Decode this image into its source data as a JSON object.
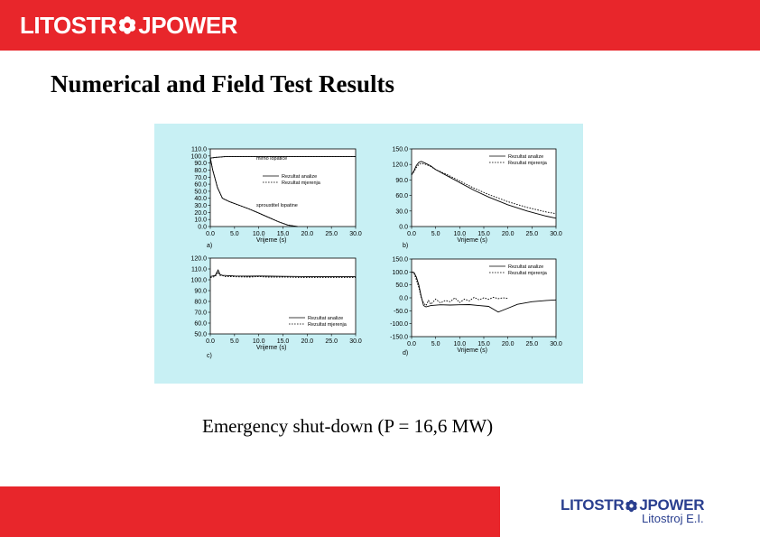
{
  "brand": {
    "name_part1": "LITOSTR",
    "name_part2": "JPOWER",
    "subsidiary": "Litostroj E.I.",
    "colors": {
      "red": "#e8262b",
      "blue": "#2a3f8f"
    },
    "logo_icon": "flower-icon"
  },
  "slide": {
    "title": "Numerical and Field Test Results",
    "caption": "Emergency shut-down (P = 16,6 MW)"
  },
  "chart_data": [
    {
      "id": "a",
      "type": "line",
      "panel_label": "a)",
      "xlabel": "Vrijeme (s)",
      "ylabel": "",
      "xlim": [
        0,
        30
      ],
      "ylim": [
        0,
        110
      ],
      "x_ticks": [
        "0.0",
        "5.0",
        "10.0",
        "15.0",
        "20.0",
        "25.0",
        "30.0"
      ],
      "y_ticks": [
        "110.0",
        "100.0",
        "90.0",
        "80.0",
        "70.0",
        "60.0",
        "50.0",
        "40.0",
        "30.0",
        "20.0",
        "10.0",
        "0.0"
      ],
      "legend": {
        "position": "right",
        "entries": [
          "Rezultat analize",
          "Rezultat mjerenja"
        ]
      },
      "annotations": [
        {
          "text": "mirno lopatice",
          "x": 9.5,
          "y": 97
        },
        {
          "text": "sproustitel lopatine",
          "x": 9.5,
          "y": 31
        }
      ],
      "series": [
        {
          "name": "Rezultat analize",
          "style": "solid",
          "x": [
            0,
            1,
            3,
            5,
            10,
            15,
            20,
            25,
            30
          ],
          "y": [
            97,
            98,
            99,
            99,
            99,
            99,
            99,
            99,
            99
          ]
        },
        {
          "name": "Rezultat mjerenja",
          "style": "dashed",
          "x": [
            0,
            1,
            3,
            5,
            10,
            15,
            20,
            25,
            30
          ],
          "y": [
            97,
            98,
            99,
            99,
            99,
            99,
            99,
            99,
            99
          ]
        },
        {
          "name": "Rezultat analize",
          "style": "solid",
          "x": [
            0,
            0.5,
            1.5,
            2.5,
            4,
            6,
            8,
            10,
            12,
            14,
            16,
            18
          ],
          "y": [
            97,
            80,
            55,
            40,
            35,
            30,
            25,
            19,
            13,
            7,
            2,
            0
          ]
        },
        {
          "name": "Rezultat mjerenja",
          "style": "dashed",
          "x": [
            0,
            0.5,
            1.5,
            2.5,
            4,
            6,
            8,
            10,
            12,
            14,
            16,
            18
          ],
          "y": [
            97,
            80,
            55,
            40,
            35,
            30,
            25,
            19,
            13,
            7,
            2,
            0
          ]
        }
      ]
    },
    {
      "id": "b",
      "type": "line",
      "panel_label": "b)",
      "xlabel": "Vrijeme (s)",
      "ylabel": "",
      "xlim": [
        0,
        30
      ],
      "ylim": [
        0,
        150
      ],
      "x_ticks": [
        "0.0",
        "5.0",
        "10.0",
        "15.0",
        "20.0",
        "25.0",
        "30.0"
      ],
      "y_ticks": [
        "150.0",
        "120.0",
        "90.0",
        "60.0",
        "30.0",
        "0.0"
      ],
      "legend": {
        "position": "top-right",
        "entries": [
          "Rezultat analize",
          "Rezultat mjerenja"
        ]
      },
      "series": [
        {
          "name": "Rezultat analize",
          "style": "solid",
          "x": [
            0,
            0.5,
            1,
            1.5,
            2,
            2.5,
            3,
            4,
            5,
            7,
            10,
            13,
            16,
            20,
            24,
            28,
            30
          ],
          "y": [
            100,
            108,
            118,
            124,
            126,
            124,
            122,
            117,
            110,
            100,
            85,
            70,
            57,
            42,
            30,
            20,
            16
          ]
        },
        {
          "name": "Rezultat mjerenja",
          "style": "dashed",
          "x": [
            0,
            0.5,
            1,
            1.5,
            2,
            2.5,
            3,
            4,
            5,
            7,
            10,
            13,
            16,
            20,
            24,
            28,
            30
          ],
          "y": [
            100,
            106,
            114,
            120,
            122,
            121,
            120,
            116,
            110,
            102,
            88,
            74,
            62,
            48,
            37,
            28,
            25
          ]
        }
      ]
    },
    {
      "id": "c",
      "type": "line",
      "panel_label": "c)",
      "xlabel": "Vrijeme (s)",
      "ylabel": "",
      "xlim": [
        0,
        30
      ],
      "ylim": [
        50,
        120
      ],
      "x_ticks": [
        "0.0",
        "5.0",
        "10.0",
        "15.0",
        "20.0",
        "25.0",
        "30.0"
      ],
      "y_ticks": [
        "120.0",
        "110.0",
        "100.0",
        "90.0",
        "80.0",
        "70.0",
        "60.0",
        "50.0"
      ],
      "legend": {
        "position": "bottom-right",
        "entries": [
          "Rezultat analize",
          "Rezultat mjerenja"
        ]
      },
      "series": [
        {
          "name": "Rezultat analize",
          "style": "solid",
          "x": [
            0,
            1,
            1.6,
            2,
            2.5,
            3,
            5,
            8,
            10,
            12,
            15,
            20,
            25,
            30
          ],
          "y": [
            103,
            104,
            109,
            105,
            104,
            104,
            103.5,
            103.3,
            103.5,
            103.3,
            103.2,
            103,
            103,
            103
          ]
        },
        {
          "name": "Rezultat mjerenja",
          "style": "dashed",
          "x": [
            0,
            1,
            1.6,
            2,
            2.5,
            3,
            5,
            8,
            10,
            12,
            15,
            20,
            25,
            30
          ],
          "y": [
            102,
            103,
            107,
            104,
            104,
            103,
            102.8,
            102.5,
            103,
            102.4,
            102.5,
            102,
            102,
            102
          ]
        }
      ]
    },
    {
      "id": "d",
      "type": "line",
      "panel_label": "d)",
      "xlabel": "Vrijeme (s)",
      "ylabel": "",
      "xlim": [
        0,
        30
      ],
      "ylim": [
        -150,
        150
      ],
      "x_ticks": [
        "0.0",
        "5.0",
        "10.0",
        "15.0",
        "20.0",
        "25.0",
        "30.0"
      ],
      "y_ticks": [
        "150.0",
        "100.0",
        "50.0",
        "0.0",
        "-50.0",
        "-100.0",
        "-150.0"
      ],
      "legend": {
        "position": "top-right",
        "entries": [
          "Rezultat analize",
          "Rezultat mjerenja"
        ]
      },
      "series": [
        {
          "name": "Rezultat analize",
          "style": "solid",
          "x": [
            0,
            0.5,
            1,
            1.5,
            2,
            2.5,
            3,
            4,
            6,
            8,
            10,
            12,
            14,
            16,
            18,
            20,
            22,
            25,
            28,
            30
          ],
          "y": [
            100,
            98,
            80,
            50,
            5,
            -30,
            -35,
            -30,
            -27,
            -28,
            -27,
            -26,
            -30,
            -33,
            -55,
            -40,
            -25,
            -15,
            -10,
            -8
          ]
        },
        {
          "name": "Rezultat mjerenja",
          "style": "dashed",
          "x": [
            0,
            0.5,
            1,
            1.5,
            2,
            2.5,
            3,
            3.5,
            4,
            5,
            6,
            7,
            8,
            9,
            10,
            11,
            12,
            13,
            14,
            15,
            16,
            17,
            18,
            19,
            20
          ],
          "y": [
            100,
            95,
            70,
            40,
            0,
            -20,
            -30,
            -10,
            -25,
            -5,
            -20,
            -10,
            -15,
            0,
            -18,
            -5,
            -12,
            2,
            -8,
            0,
            -6,
            2,
            -3,
            0,
            -2
          ]
        }
      ]
    }
  ]
}
